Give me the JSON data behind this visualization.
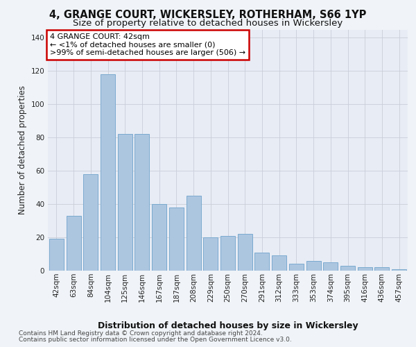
{
  "title1": "4, GRANGE COURT, WICKERSLEY, ROTHERHAM, S66 1YP",
  "title2": "Size of property relative to detached houses in Wickersley",
  "xlabel": "Distribution of detached houses by size in Wickersley",
  "ylabel": "Number of detached properties",
  "categories": [
    "42sqm",
    "63sqm",
    "84sqm",
    "104sqm",
    "125sqm",
    "146sqm",
    "167sqm",
    "187sqm",
    "208sqm",
    "229sqm",
    "250sqm",
    "270sqm",
    "291sqm",
    "312sqm",
    "333sqm",
    "353sqm",
    "374sqm",
    "395sqm",
    "416sqm",
    "436sqm",
    "457sqm"
  ],
  "values": [
    19,
    33,
    58,
    118,
    82,
    82,
    40,
    38,
    45,
    20,
    21,
    22,
    11,
    9,
    4,
    6,
    5,
    3,
    2,
    2,
    1
  ],
  "bar_color": "#adc6e0",
  "bar_edge_color": "#7aaacf",
  "annotation_text": "4 GRANGE COURT: 42sqm\n← <1% of detached houses are smaller (0)\n>99% of semi-detached houses are larger (506) →",
  "annotation_box_color": "#ffffff",
  "annotation_box_edge_color": "#cc0000",
  "ylim": [
    0,
    145
  ],
  "yticks": [
    0,
    20,
    40,
    60,
    80,
    100,
    120,
    140
  ],
  "bg_color": "#f0f4f8",
  "plot_bg_color": "#e8ecf5",
  "footer1": "Contains HM Land Registry data © Crown copyright and database right 2024.",
  "footer2": "Contains public sector information licensed under the Open Government Licence v3.0.",
  "title1_fontsize": 10.5,
  "title2_fontsize": 9.5,
  "xlabel_fontsize": 9,
  "ylabel_fontsize": 8.5,
  "tick_fontsize": 7.5,
  "annotation_fontsize": 8,
  "footer_fontsize": 6.5
}
